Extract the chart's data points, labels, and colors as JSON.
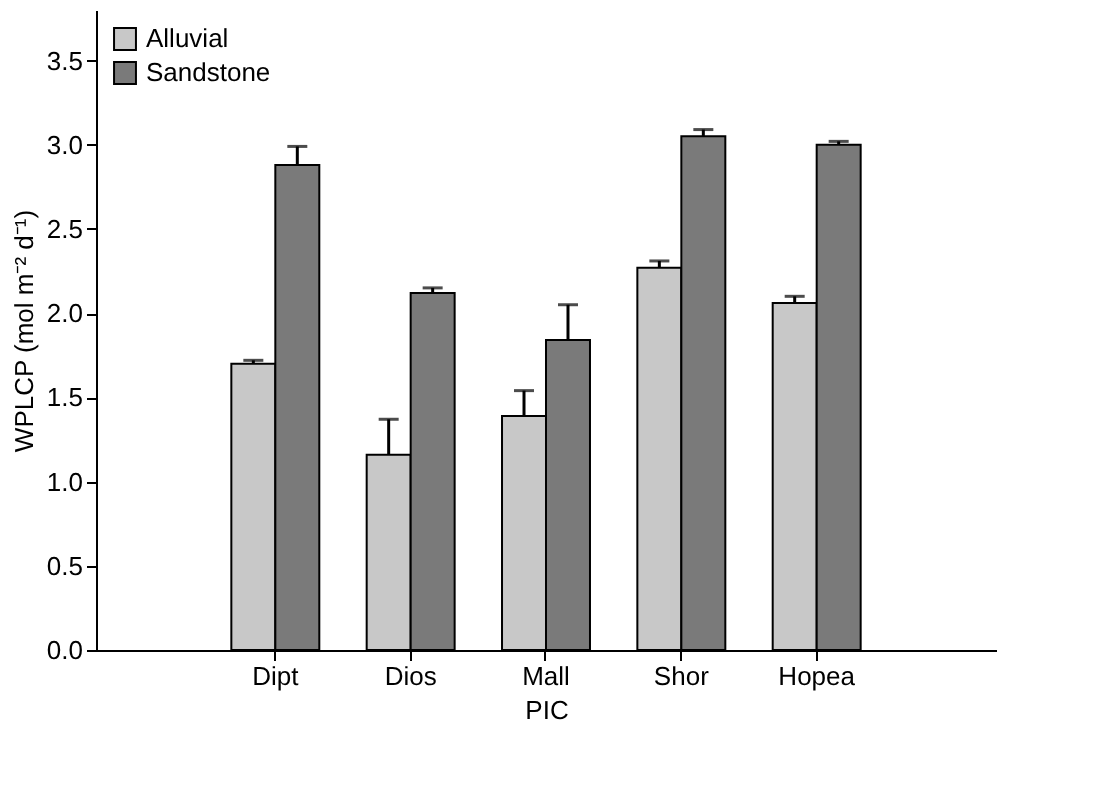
{
  "chart_data": {
    "type": "bar",
    "xlabel": "PIC",
    "ylabel": "WPLCP (mol m⁻² d⁻¹)",
    "categories": [
      "Dipt",
      "Dios",
      "Mall",
      "Shor",
      "Hopea"
    ],
    "series": [
      {
        "name": "Alluvial",
        "color": "#c8c8c8",
        "values": [
          1.7,
          1.16,
          1.39,
          2.27,
          2.06
        ],
        "errors": [
          [
            1.7,
            1.72
          ],
          [
            1.16,
            1.37
          ],
          [
            1.39,
            1.54
          ],
          [
            2.27,
            2.31
          ],
          [
            2.06,
            2.1
          ]
        ]
      },
      {
        "name": "Sandstone",
        "color": "#7a7a7a",
        "values": [
          2.88,
          2.12,
          1.84,
          3.05,
          3.0
        ],
        "errors": [
          [
            2.88,
            2.99
          ],
          [
            2.12,
            2.15
          ],
          [
            1.84,
            2.05
          ],
          [
            3.05,
            3.09
          ],
          [
            3.0,
            3.02
          ]
        ]
      }
    ],
    "ylim": [
      0,
      3.8
    ],
    "yticks": [
      {
        "value": 0,
        "label": "0.0"
      },
      0.5,
      {
        "value": 1,
        "label": "1.0"
      },
      1.5,
      {
        "value": 2,
        "label": "2.0"
      },
      2.5,
      {
        "value": 3,
        "label": "3.0"
      },
      3.5
    ],
    "grid": false,
    "legend": "top left"
  }
}
